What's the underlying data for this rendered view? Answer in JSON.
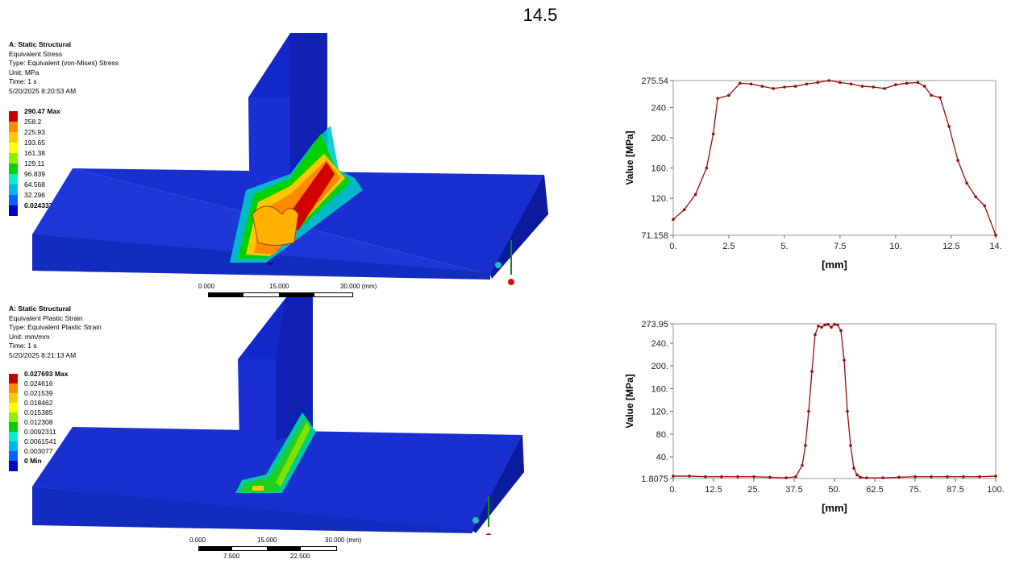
{
  "slide_title": "14.5",
  "panels": [
    {
      "header": "A: Static Structural",
      "lines": [
        "Equivalent Stress",
        "Type: Equivalent (von-Mises) Stress",
        "Unit: MPa",
        "Time: 1 s",
        "5/20/2025 8:20:53 AM"
      ],
      "legend": [
        "290.47 Max",
        "258.2",
        "225.93",
        "193.65",
        "161.38",
        "129.11",
        "96.839",
        "64.568",
        "32.296",
        "0.024337 Min"
      ],
      "scale_top": [
        "0.000",
        "15.000",
        "30.000 (mm)"
      ],
      "scale_bottom": []
    },
    {
      "header": "A: Static Structural",
      "lines": [
        "Equivalent Plastic Strain",
        "Type: Equivalent Plastic Strain",
        "Unit: mm/mm",
        "Time: 1 s",
        "5/20/2025 8:21:13 AM"
      ],
      "legend": [
        "0.027693 Max",
        "0.024616",
        "0.021539",
        "0.018462",
        "0.015385",
        "0.012308",
        "0.0092311",
        "0.0061541",
        "0.003077",
        "0 Min"
      ],
      "scale_top": [
        "0.000",
        "15.000",
        "30.000 (mm)"
      ],
      "scale_bottom": [
        "7.500",
        "22.500"
      ]
    }
  ],
  "legend_colors": [
    "#c80000",
    "#ff8a00",
    "#ffc800",
    "#ffff00",
    "#8cf000",
    "#00d200",
    "#00f0c8",
    "#00b4f0",
    "#0064ff",
    "#0000c8"
  ],
  "triad_labels": [
    "Y",
    "Z"
  ],
  "chart_data": [
    {
      "type": "line",
      "xlabel": "[mm]",
      "ylabel": "Value [MPa]",
      "xlim": [
        0,
        14.5
      ],
      "ylim": [
        71.158,
        275.54
      ],
      "xticks": [
        {
          "v": 0,
          "t": "0."
        },
        {
          "v": 2.5,
          "t": "2.5"
        },
        {
          "v": 5,
          "t": "5."
        },
        {
          "v": 7.5,
          "t": "7.5"
        },
        {
          "v": 10,
          "t": "10."
        },
        {
          "v": 12.5,
          "t": "12.5"
        },
        {
          "v": 14.5,
          "t": "14."
        }
      ],
      "yticks": [
        {
          "v": 71.158,
          "t": "71.158"
        },
        {
          "v": 120,
          "t": "120."
        },
        {
          "v": 160,
          "t": "160."
        },
        {
          "v": 200,
          "t": "200."
        },
        {
          "v": 240,
          "t": "240."
        },
        {
          "v": 275.54,
          "t": "275.54"
        }
      ],
      "series": [
        {
          "color": "#9b0a0a",
          "x": [
            0,
            0.5,
            1,
            1.5,
            1.8,
            2,
            2.5,
            3,
            3.5,
            4,
            4.5,
            5,
            5.5,
            6,
            6.5,
            7,
            7.5,
            8,
            8.5,
            9,
            9.5,
            10,
            10.5,
            11,
            11.3,
            11.6,
            12,
            12.4,
            12.8,
            13.2,
            13.6,
            14,
            14.5
          ],
          "y": [
            92,
            105,
            125,
            160,
            205,
            252,
            256,
            272,
            271,
            268,
            265,
            267,
            268,
            271,
            273,
            275.5,
            273,
            271,
            268,
            267,
            265,
            270,
            272,
            273,
            268,
            256,
            253,
            215,
            170,
            140,
            122,
            110,
            71.2
          ]
        }
      ]
    },
    {
      "type": "line",
      "xlabel": "[mm]",
      "ylabel": "Value [MPa]",
      "xlim": [
        0,
        100
      ],
      "ylim": [
        1.8075,
        273.95
      ],
      "xticks": [
        {
          "v": 0,
          "t": "0."
        },
        {
          "v": 12.5,
          "t": "12.5"
        },
        {
          "v": 25,
          "t": "25."
        },
        {
          "v": 37.5,
          "t": "37.5"
        },
        {
          "v": 50,
          "t": "50."
        },
        {
          "v": 62.5,
          "t": "62.5"
        },
        {
          "v": 75,
          "t": "75."
        },
        {
          "v": 87.5,
          "t": "87.5"
        },
        {
          "v": 100,
          "t": "100."
        }
      ],
      "yticks": [
        {
          "v": 1.8075,
          "t": "1.8075"
        },
        {
          "v": 40,
          "t": "40."
        },
        {
          "v": 80,
          "t": "80."
        },
        {
          "v": 120,
          "t": "120."
        },
        {
          "v": 160,
          "t": "160."
        },
        {
          "v": 200,
          "t": "200."
        },
        {
          "v": 240,
          "t": "240."
        },
        {
          "v": 273.95,
          "t": "273.95"
        }
      ],
      "series": [
        {
          "color": "#9b0a0a",
          "x": [
            0,
            5,
            10,
            15,
            20,
            25,
            30,
            35,
            38,
            40,
            41,
            42,
            43,
            44,
            45,
            46,
            47,
            48,
            49,
            50,
            51,
            52,
            53,
            54,
            55,
            56,
            57,
            58,
            60,
            65,
            70,
            75,
            80,
            85,
            90,
            95,
            100
          ],
          "y": [
            6,
            6,
            5,
            5,
            5,
            5,
            4,
            3,
            5,
            25,
            60,
            120,
            190,
            255,
            270,
            268,
            272,
            273,
            268,
            273,
            272,
            262,
            210,
            120,
            60,
            20,
            8,
            4,
            3,
            3,
            4,
            5,
            5,
            5,
            5,
            5,
            6
          ]
        }
      ]
    }
  ]
}
